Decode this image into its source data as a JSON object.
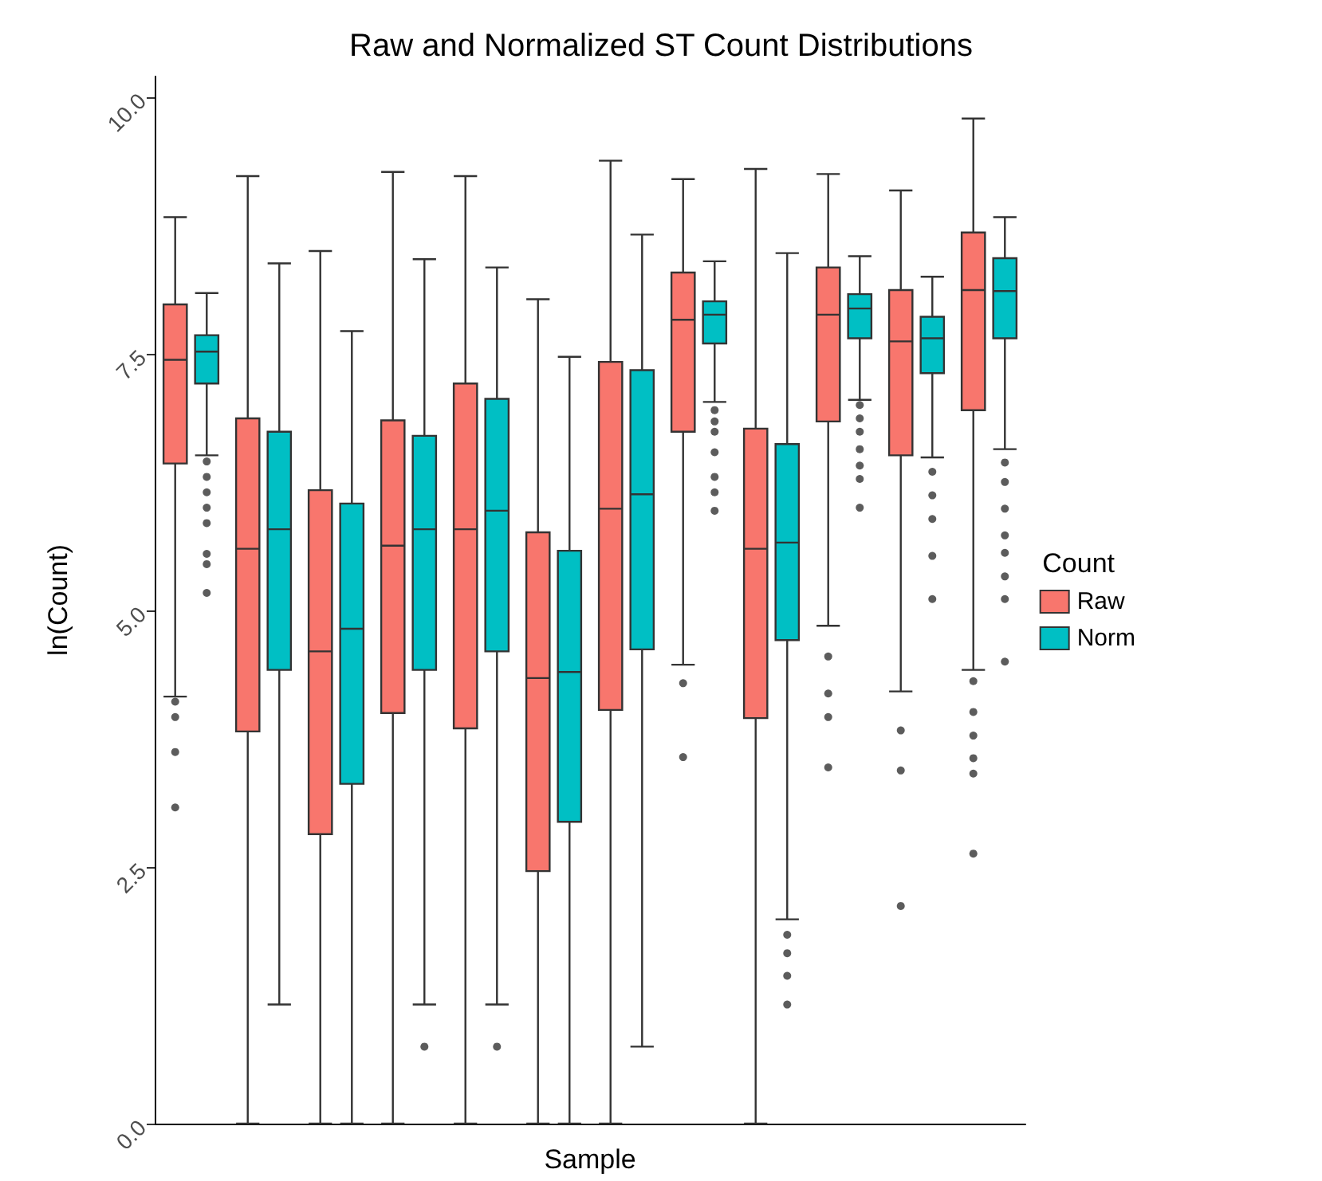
{
  "chart_data": {
    "type": "box",
    "title": "Raw and Normalized ST Count Distributions",
    "xlabel": "Sample",
    "ylabel": "ln(Count)",
    "legend_title": "Count",
    "legend": "right",
    "grid": false,
    "categories": [
      null,
      null,
      null,
      null,
      null,
      null,
      null,
      null,
      null,
      null,
      null,
      null
    ],
    "ylim": [
      0,
      10.2
    ],
    "yticks": [
      {
        "value": 0,
        "label": "0.0"
      },
      {
        "value": 2.5,
        "label": "2.5"
      },
      {
        "value": 5,
        "label": "5.0"
      },
      {
        "value": 7.5,
        "label": "7.5"
      },
      {
        "value": 10,
        "label": "10.0"
      }
    ],
    "series": [
      {
        "name": "Raw",
        "color": "#f8766d",
        "boxes": [
          {
            "low": 4.16,
            "q1": 6.43,
            "median": 7.44,
            "q3": 7.98,
            "high": 8.83,
            "outliers": [
              4.11,
              3.96,
              3.62,
              3.08
            ]
          },
          {
            "low": 0,
            "q1": 3.82,
            "median": 5.6,
            "q3": 6.87,
            "high": 9.23
          },
          {
            "low": 0,
            "q1": 2.82,
            "median": 4.6,
            "q3": 6.17,
            "high": 8.5
          },
          {
            "low": 0,
            "q1": 4.0,
            "median": 5.63,
            "q3": 6.85,
            "high": 9.27
          },
          {
            "low": 0,
            "q1": 3.85,
            "median": 5.79,
            "q3": 7.21,
            "high": 9.23
          },
          {
            "low": 0,
            "q1": 2.46,
            "median": 4.34,
            "q3": 5.76,
            "high": 8.03
          },
          {
            "low": 0,
            "q1": 4.03,
            "median": 5.99,
            "q3": 7.42,
            "high": 9.38
          },
          {
            "low": 4.47,
            "q1": 6.74,
            "median": 7.83,
            "q3": 8.29,
            "high": 9.2,
            "outliers": [
              4.29,
              3.57
            ]
          },
          {
            "low": 0,
            "q1": 3.95,
            "median": 5.6,
            "q3": 6.77,
            "high": 9.3
          },
          {
            "low": 4.85,
            "q1": 6.84,
            "median": 7.88,
            "q3": 8.34,
            "high": 9.25,
            "outliers": [
              4.55,
              4.19,
              3.96,
              3.47
            ]
          },
          {
            "low": 4.21,
            "q1": 6.51,
            "median": 7.62,
            "q3": 8.12,
            "high": 9.09,
            "outliers": [
              3.83,
              3.44,
              2.12
            ]
          },
          {
            "low": 4.42,
            "q1": 6.95,
            "median": 8.12,
            "q3": 8.68,
            "high": 9.79,
            "outliers": [
              4.31,
              4.01,
              3.78,
              3.56,
              3.41,
              2.63
            ]
          }
        ]
      },
      {
        "name": "Norm",
        "color": "#00bfc4",
        "boxes": [
          {
            "low": 6.51,
            "q1": 7.21,
            "median": 7.52,
            "q3": 7.68,
            "high": 8.09,
            "outliers": [
              6.45,
              6.3,
              6.15,
              6.0,
              5.85,
              5.55,
              5.45,
              5.17
            ]
          },
          {
            "low": 1.16,
            "q1": 4.42,
            "median": 5.79,
            "q3": 6.74,
            "high": 8.38
          },
          {
            "low": 0,
            "q1": 3.31,
            "median": 4.82,
            "q3": 6.04,
            "high": 7.72
          },
          {
            "low": 1.16,
            "q1": 4.42,
            "median": 5.79,
            "q3": 6.7,
            "high": 8.42,
            "outliers": [
              0.75
            ]
          },
          {
            "low": 1.16,
            "q1": 4.6,
            "median": 5.97,
            "q3": 7.06,
            "high": 8.34,
            "outliers": [
              0.75
            ]
          },
          {
            "low": 0,
            "q1": 2.94,
            "median": 4.4,
            "q3": 5.58,
            "high": 7.47
          },
          {
            "low": 0.75,
            "q1": 4.62,
            "median": 6.13,
            "q3": 7.34,
            "high": 8.66
          },
          {
            "low": 7.03,
            "q1": 7.6,
            "median": 7.88,
            "q3": 8.01,
            "high": 8.4,
            "outliers": [
              6.95,
              6.84,
              6.74,
              6.54,
              6.3,
              6.15,
              5.97
            ]
          },
          {
            "low": 1.99,
            "q1": 4.71,
            "median": 5.66,
            "q3": 6.62,
            "high": 8.48,
            "outliers": [
              1.84,
              1.66,
              1.44,
              1.16
            ]
          },
          {
            "low": 7.05,
            "q1": 7.65,
            "median": 7.94,
            "q3": 8.08,
            "high": 8.45,
            "outliers": [
              7.0,
              6.87,
              6.74,
              6.57,
              6.41,
              6.28,
              6.0
            ]
          },
          {
            "low": 6.49,
            "q1": 7.31,
            "median": 7.65,
            "q3": 7.86,
            "high": 8.25,
            "outliers": [
              6.35,
              6.12,
              5.89,
              5.53,
              5.11
            ]
          },
          {
            "low": 6.57,
            "q1": 7.65,
            "median": 8.11,
            "q3": 8.43,
            "high": 8.83,
            "outliers": [
              6.44,
              6.25,
              5.99,
              5.73,
              5.56,
              5.33,
              5.11,
              4.5
            ]
          }
        ]
      }
    ]
  }
}
